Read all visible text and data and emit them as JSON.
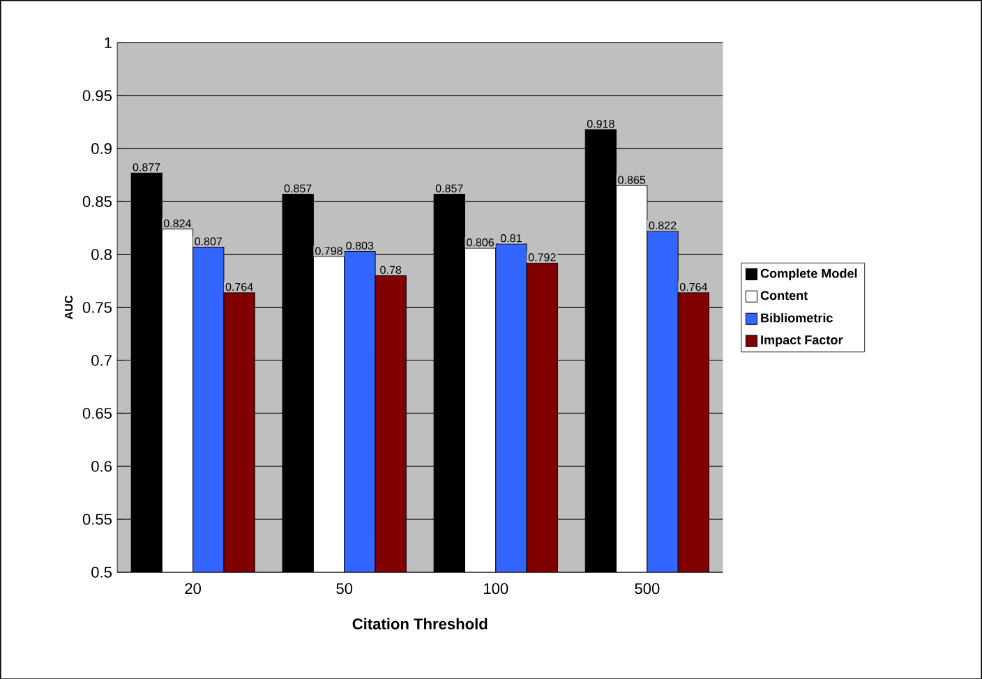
{
  "chart_data": {
    "type": "bar",
    "xlabel": "Citation Threshold",
    "ylabel": "AUC",
    "categories": [
      "20",
      "50",
      "100",
      "500"
    ],
    "series": [
      {
        "name": "Complete Model",
        "color": "#000000",
        "values": [
          0.877,
          0.857,
          0.857,
          0.918
        ]
      },
      {
        "name": "Content",
        "color": "#ffffff",
        "values": [
          0.824,
          0.798,
          0.806,
          0.865
        ]
      },
      {
        "name": "Bibliometric",
        "color": "#3366ff",
        "values": [
          0.807,
          0.803,
          0.81,
          0.822
        ]
      },
      {
        "name": "Impact Factor",
        "color": "#800000",
        "values": [
          0.764,
          0.78,
          0.792,
          0.764
        ]
      }
    ],
    "ylim": [
      0.5,
      1
    ],
    "yticks": [
      0.5,
      0.55,
      0.6,
      0.65,
      0.7,
      0.75,
      0.8,
      0.85,
      0.9,
      0.95,
      1
    ],
    "grid": "y",
    "legend": "right",
    "data_labels": true
  }
}
